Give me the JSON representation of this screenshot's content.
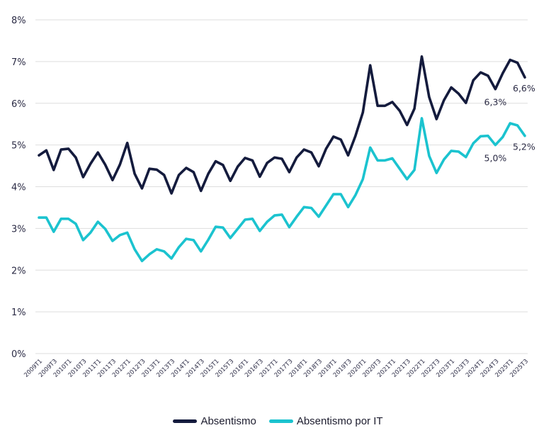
{
  "chart_data": {
    "type": "line",
    "title": "",
    "xlabel": "",
    "ylabel": "",
    "ylim": [
      0,
      8
    ],
    "yticks": [
      "0%",
      "1%",
      "2%",
      "3%",
      "4%",
      "5%",
      "6%",
      "7%",
      "8%"
    ],
    "grid": true,
    "legend_position": "bottom-center",
    "x": [
      "2009T1",
      "2009T2",
      "2009T3",
      "2009T4",
      "2010T1",
      "2010T2",
      "2010T3",
      "2010T4",
      "2011T1",
      "2011T2",
      "2011T3",
      "2011T4",
      "2012T1",
      "2012T2",
      "2012T3",
      "2012T4",
      "2013T1",
      "2013T2",
      "2013T3",
      "2013T4",
      "2014T1",
      "2014T2",
      "2014T3",
      "2014T4",
      "2015T1",
      "2015T2",
      "2015T3",
      "2015T4",
      "2016T1",
      "2016T2",
      "2016T3",
      "2016T4",
      "2017T1",
      "2017T2",
      "2017T3",
      "2017T4",
      "2018T1",
      "2018T2",
      "2018T3",
      "2018T4",
      "2019T1",
      "2019T2",
      "2019T3",
      "2019T4",
      "2020T1",
      "2020T2",
      "2020T3",
      "2020T4",
      "2021T1",
      "2021T2",
      "2021T3",
      "2021T4",
      "2022T1",
      "2022T2",
      "2022T3",
      "2022T4",
      "2023T1",
      "2023T2",
      "2023T3",
      "2023T4",
      "2024T1",
      "2024T2",
      "2024T3",
      "2024T4",
      "2025T1",
      "2025T2",
      "2025T3"
    ],
    "xtick_labels": [
      "2009T1",
      "2009T3",
      "2010T1",
      "2010T3",
      "2011T1",
      "2011T3",
      "2012T1",
      "2012T3",
      "2013T1",
      "2013T3",
      "2014T1",
      "2014T3",
      "2015T1",
      "2015T3",
      "2016T1",
      "2016T3",
      "2017T1",
      "2017T3",
      "2018T1",
      "2018T3",
      "2019T1",
      "2019T3",
      "2020T1",
      "2020T3",
      "2021T1",
      "2021T3",
      "2022T1",
      "2022T3",
      "2023T1",
      "2023T3",
      "2024T1",
      "2024T3",
      "2025T1",
      "2025T3"
    ],
    "series": [
      {
        "name": "Absentismo",
        "color": "#141b3d",
        "values": [
          4.75,
          4.87,
          4.4,
          4.89,
          4.91,
          4.7,
          4.23,
          4.55,
          4.82,
          4.53,
          4.16,
          4.53,
          5.05,
          4.31,
          3.96,
          4.43,
          4.41,
          4.28,
          3.84,
          4.28,
          4.45,
          4.35,
          3.9,
          4.31,
          4.61,
          4.52,
          4.14,
          4.48,
          4.69,
          4.63,
          4.24,
          4.57,
          4.7,
          4.67,
          4.35,
          4.7,
          4.89,
          4.82,
          4.49,
          4.91,
          5.2,
          5.13,
          4.75,
          5.22,
          5.78,
          6.91,
          5.94,
          5.94,
          6.03,
          5.82,
          5.48,
          5.87,
          7.12,
          6.15,
          5.62,
          6.07,
          6.38,
          6.23,
          6.01,
          6.55,
          6.74,
          6.66,
          6.34,
          6.72,
          7.04,
          6.97,
          6.62
        ]
      },
      {
        "name": "Absentismo por IT",
        "color": "#1bc3cf",
        "values": [
          3.26,
          3.26,
          2.92,
          3.23,
          3.23,
          3.11,
          2.72,
          2.9,
          3.16,
          2.99,
          2.7,
          2.84,
          2.9,
          2.5,
          2.22,
          2.38,
          2.5,
          2.45,
          2.28,
          2.55,
          2.75,
          2.72,
          2.45,
          2.73,
          3.04,
          3.02,
          2.77,
          2.99,
          3.21,
          3.23,
          2.94,
          3.16,
          3.31,
          3.33,
          3.03,
          3.28,
          3.51,
          3.49,
          3.28,
          3.55,
          3.82,
          3.82,
          3.51,
          3.8,
          4.18,
          4.94,
          4.63,
          4.63,
          4.68,
          4.43,
          4.18,
          4.4,
          5.64,
          4.74,
          4.33,
          4.65,
          4.86,
          4.84,
          4.71,
          5.04,
          5.21,
          5.22,
          5.0,
          5.19,
          5.52,
          5.47,
          5.22
        ]
      }
    ],
    "annotations": [
      {
        "series": "Absentismo",
        "x": "2024T3",
        "text": "6,3%",
        "placement": "below"
      },
      {
        "series": "Absentismo",
        "x": "2025T3",
        "text": "6,6%",
        "placement": "below-right"
      },
      {
        "series": "Absentismo por IT",
        "x": "2024T3",
        "text": "5,0%",
        "placement": "below"
      },
      {
        "series": "Absentismo por IT",
        "x": "2025T3",
        "text": "5,2%",
        "placement": "below-right"
      }
    ]
  },
  "legend": {
    "items": [
      {
        "label": "Absentismo",
        "color": "#141b3d"
      },
      {
        "label": "Absentismo por IT",
        "color": "#1bc3cf"
      }
    ]
  }
}
